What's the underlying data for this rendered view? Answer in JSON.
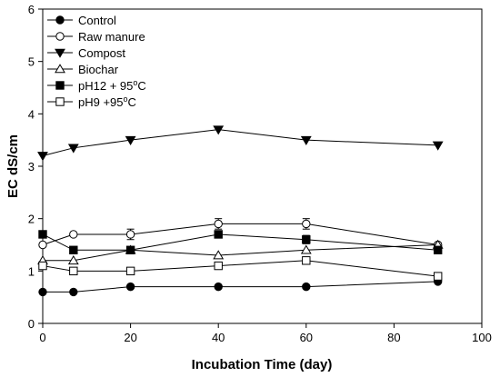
{
  "chart_data": {
    "type": "line",
    "title": "",
    "xlabel": "Incubation Time (day)",
    "ylabel": "EC dS/cm",
    "xlim": [
      0,
      100
    ],
    "ylim": [
      0,
      6
    ],
    "xticks": [
      0,
      20,
      40,
      60,
      80,
      100
    ],
    "yticks": [
      0,
      1,
      2,
      3,
      4,
      5,
      6
    ],
    "grid": false,
    "legend_position": "top-left",
    "series": [
      {
        "name": "Control",
        "marker": "circle-filled",
        "x": [
          0,
          7,
          20,
          40,
          60,
          90
        ],
        "y": [
          0.6,
          0.6,
          0.7,
          0.7,
          0.7,
          0.8
        ]
      },
      {
        "name": "Raw manure",
        "marker": "circle-open",
        "x": [
          0,
          7,
          20,
          40,
          60,
          90
        ],
        "y": [
          1.5,
          1.7,
          1.7,
          1.9,
          1.9,
          1.5
        ],
        "errors": [
          0.0,
          0.0,
          0.1,
          0.1,
          0.1,
          0.0
        ]
      },
      {
        "name": "Compost",
        "marker": "triangle-down-filled",
        "x": [
          0,
          7,
          20,
          40,
          60,
          90
        ],
        "y": [
          3.2,
          3.35,
          3.5,
          3.7,
          3.5,
          3.4
        ]
      },
      {
        "name": "Biochar",
        "marker": "triangle-up-open",
        "x": [
          0,
          7,
          20,
          40,
          60,
          90
        ],
        "y": [
          1.2,
          1.2,
          1.4,
          1.3,
          1.4,
          1.5
        ]
      },
      {
        "name": "pH12 + 95",
        "name_sup": "o",
        "name_suffix": "C",
        "marker": "square-filled",
        "x": [
          0,
          7,
          20,
          40,
          60,
          90
        ],
        "y": [
          1.7,
          1.4,
          1.4,
          1.7,
          1.6,
          1.4
        ],
        "errors": [
          0.0,
          0.0,
          0.0,
          0.0,
          0.08,
          0.0
        ]
      },
      {
        "name": "pH9 +95",
        "name_sup": "o",
        "name_suffix": "C",
        "marker": "square-open",
        "x": [
          0,
          7,
          20,
          40,
          60,
          90
        ],
        "y": [
          1.1,
          1.0,
          1.0,
          1.1,
          1.2,
          0.9
        ]
      }
    ]
  }
}
